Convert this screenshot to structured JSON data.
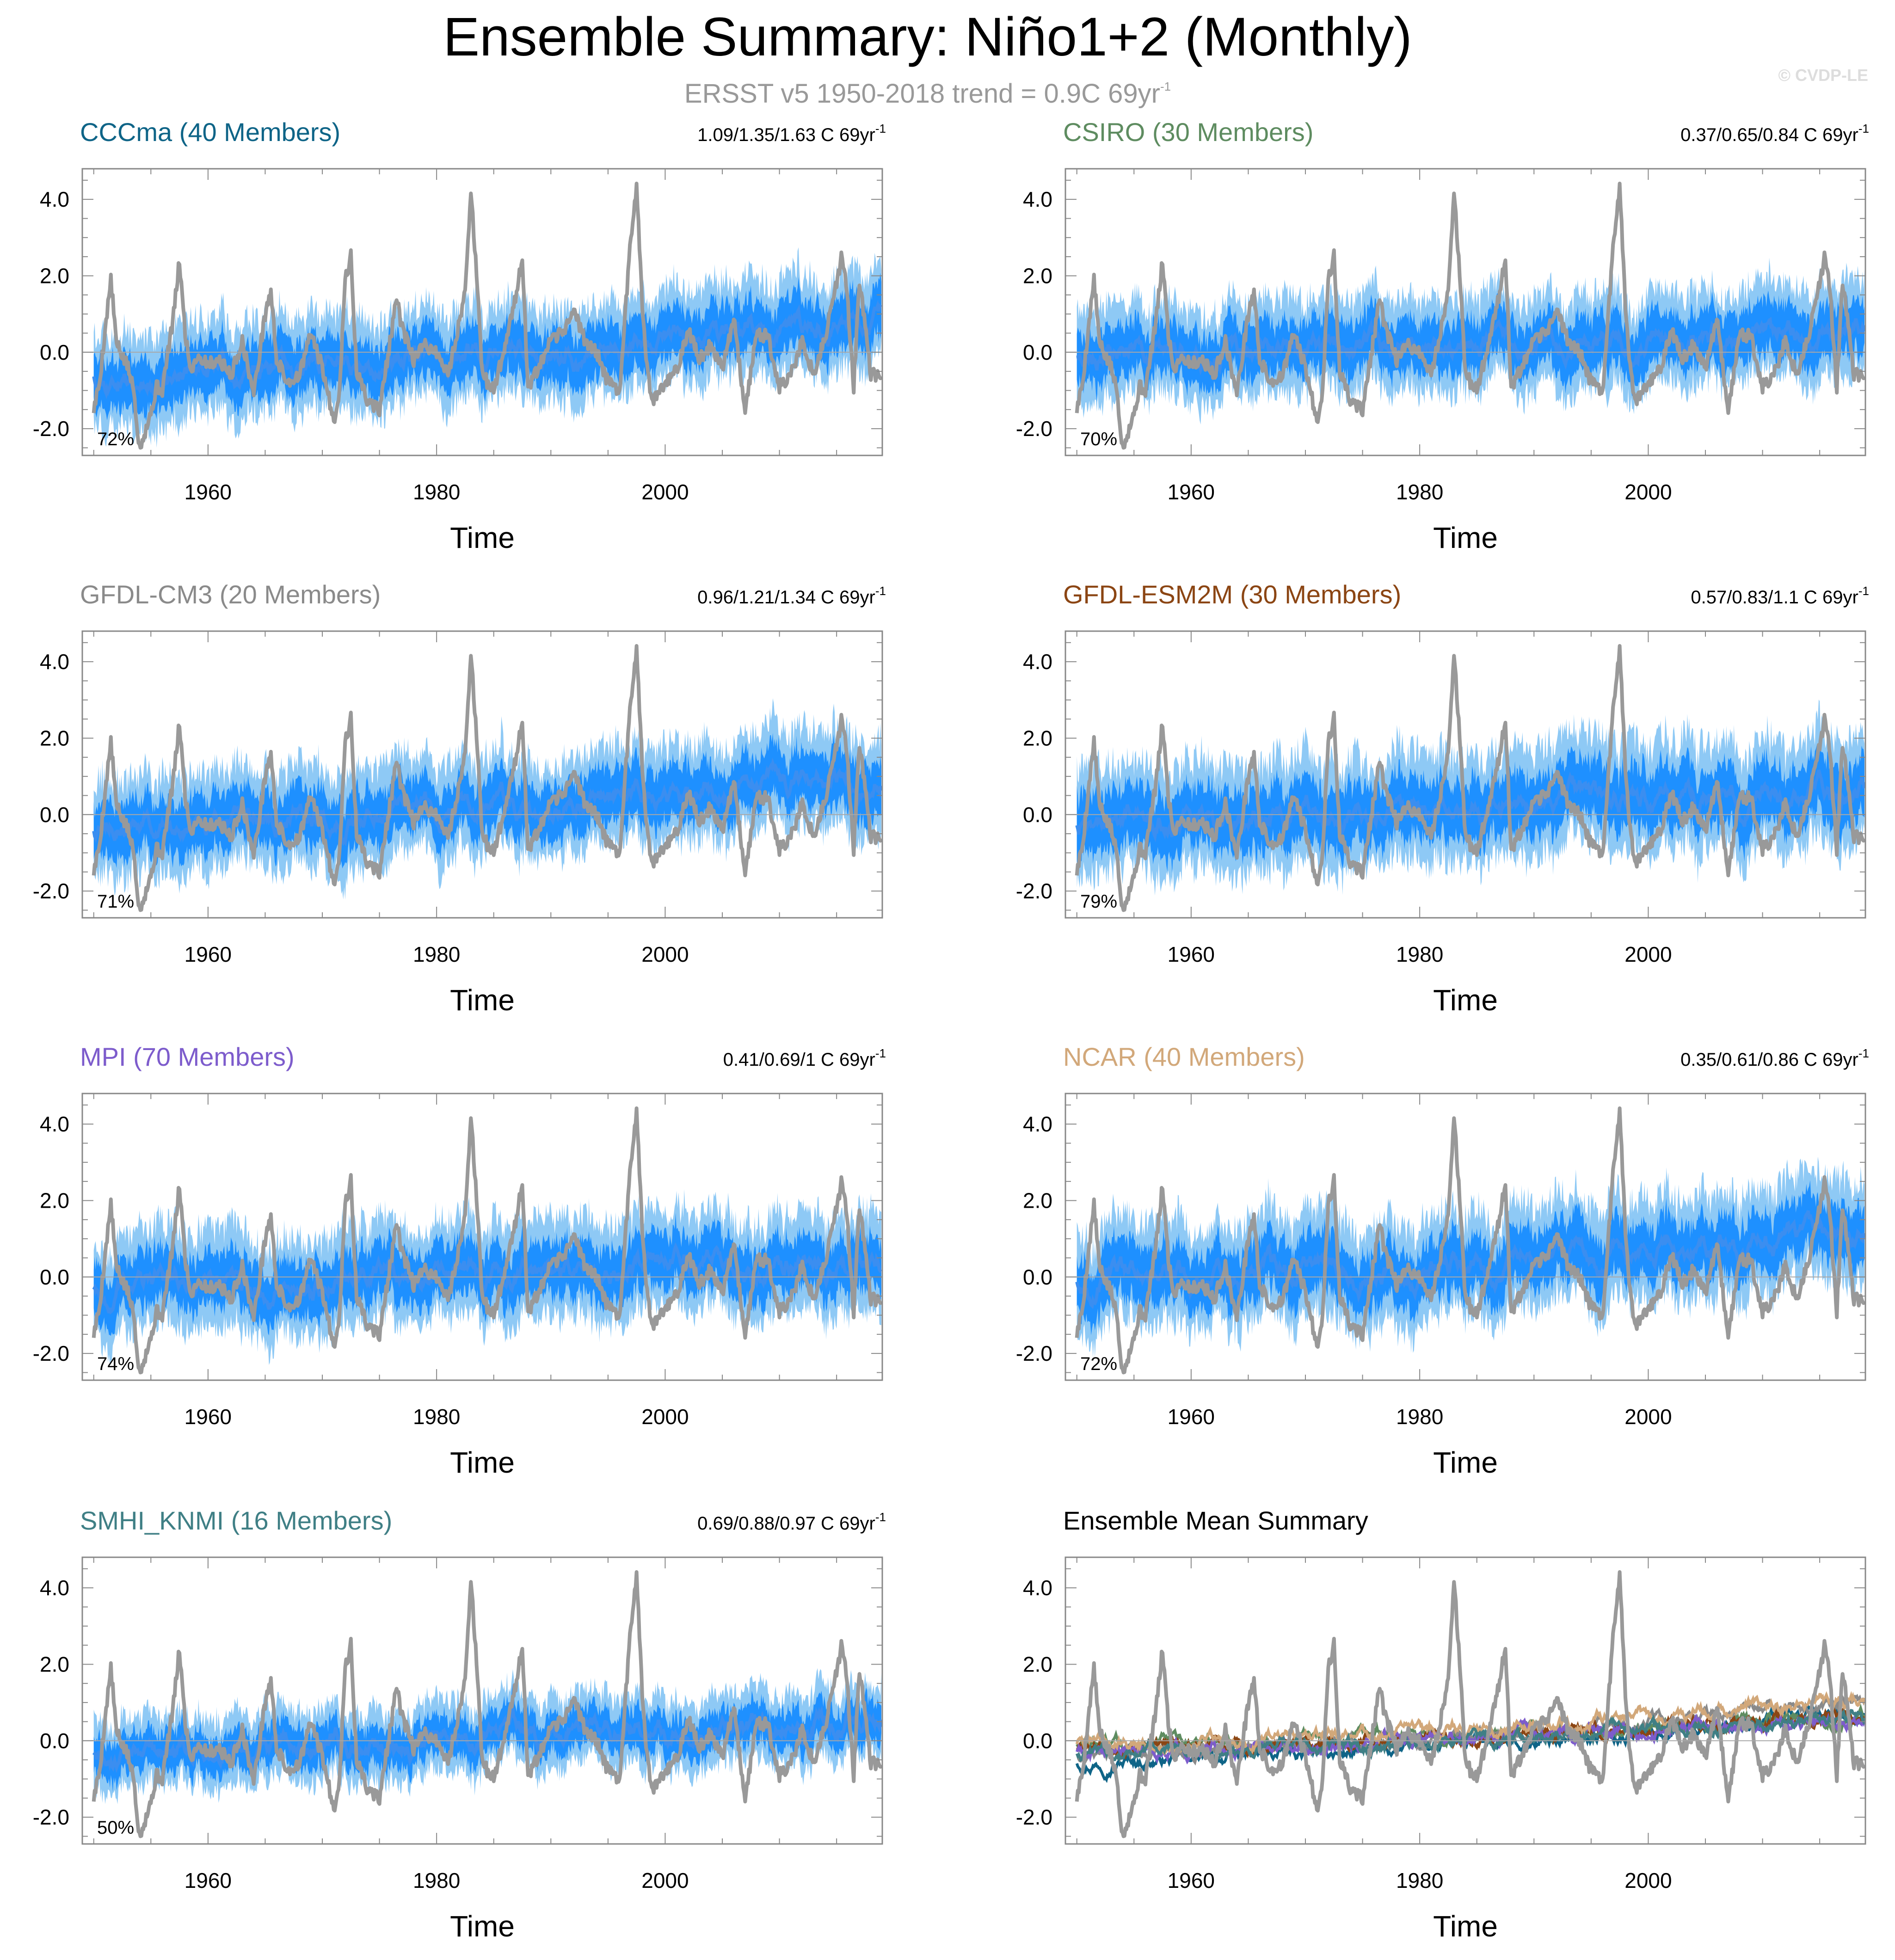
{
  "header": {
    "title": "Ensemble Summary: Niño1+2 (Monthly)",
    "subtitle": "ERSST v5 1950-2018 trend = 0.9C 69yr",
    "subtitle_sup": "-1",
    "copyright": "© CVDP-LE"
  },
  "colors": {
    "observed": "#999999",
    "ensemble_mean": "#3b8ef0",
    "spread_inner": "#1e90ff",
    "spread_outer": "#8ec9f5",
    "axis": "#888888",
    "zero_line": "#a8a8a8"
  },
  "panels": [
    {
      "title": "CCCma (40 Members)",
      "color": "#0e6487",
      "trend": "1.09/1.35/1.63 C 69yr",
      "trend_sup": "-1",
      "pct": "72%",
      "end_mean": 0.75,
      "start_mean": -0.55,
      "wid": 1.0,
      "seed": 11
    },
    {
      "title": "CSIRO (30 Members)",
      "color": "#5e8c60",
      "trend": "0.37/0.65/0.84 C 69yr",
      "trend_sup": "-1",
      "pct": "70%",
      "end_mean": 0.6,
      "start_mean": -0.05,
      "wid": 1.0,
      "seed": 23
    },
    {
      "title": "GFDL-CM3 (20 Members)",
      "color": "#8a8a8a",
      "trend": "0.96/1.21/1.34 C 69yr",
      "trend_sup": "-1",
      "pct": "71%",
      "end_mean": 1.0,
      "start_mean": -0.35,
      "wid": 1.05,
      "seed": 37
    },
    {
      "title": "GFDL-ESM2M (30 Members)",
      "color": "#8b4513",
      "trend": "0.57/0.83/1.1 C 69yr",
      "trend_sup": "-1",
      "pct": "79%",
      "end_mean": 0.65,
      "start_mean": -0.2,
      "wid": 1.15,
      "seed": 41
    },
    {
      "title": "MPI (70 Members)",
      "color": "#7d5ccc",
      "trend": "0.41/0.69/1 C 69yr",
      "trend_sup": "-1",
      "pct": "74%",
      "end_mean": 0.55,
      "start_mean": -0.25,
      "wid": 1.05,
      "seed": 53
    },
    {
      "title": "NCAR (40 Members)",
      "color": "#d2a87a",
      "trend": "0.35/0.61/0.86 C 69yr",
      "trend_sup": "-1",
      "pct": "72%",
      "end_mean": 1.1,
      "start_mean": -0.05,
      "wid": 1.1,
      "seed": 67
    },
    {
      "title": "SMHI_KNMI (16 Members)",
      "color": "#3f7f85",
      "trend": "0.69/0.88/0.97 C 69yr",
      "trend_sup": "-1",
      "pct": "50%",
      "end_mean": 0.6,
      "start_mean": -0.3,
      "wid": 0.75,
      "seed": 79
    },
    {
      "title": "Ensemble Mean Summary",
      "color": "#000000",
      "trend": "",
      "trend_sup": "",
      "pct": "",
      "summary": true,
      "seed": 97
    }
  ],
  "chart_data": {
    "type": "line",
    "title": "Ensemble Summary: Niño1+2 (Monthly)",
    "xlabel": "Time",
    "ylabel": "",
    "xlim": [
      1949,
      2019
    ],
    "ylim": [
      -2.7,
      4.8
    ],
    "x_ticks": [
      1960,
      1980,
      2000
    ],
    "y_ticks": [
      -2.0,
      0.0,
      2.0,
      4.0
    ],
    "y_tick_labels": [
      "-2.0",
      "0.0",
      "2.0",
      "4.0"
    ],
    "observed_series": {
      "name": "ERSST v5",
      "x": [
        1950.0,
        1950.5,
        1951.0,
        1951.5,
        1952.0,
        1953.0,
        1953.5,
        1954.0,
        1955.0,
        1955.5,
        1956.0,
        1957.0,
        1957.5,
        1958.0,
        1958.5,
        1959.0,
        1960.0,
        1961.0,
        1962.0,
        1963.0,
        1964.0,
        1965.0,
        1965.5,
        1966.0,
        1967.0,
        1968.0,
        1969.0,
        1970.0,
        1971.0,
        1971.5,
        1972.0,
        1972.5,
        1973.0,
        1974.0,
        1975.0,
        1976.0,
        1976.5,
        1977.0,
        1978.0,
        1979.0,
        1980.0,
        1981.0,
        1982.0,
        1982.5,
        1983.0,
        1983.5,
        1984.0,
        1985.0,
        1986.0,
        1987.0,
        1987.5,
        1988.0,
        1989.0,
        1990.0,
        1991.0,
        1992.0,
        1993.0,
        1994.0,
        1995.0,
        1996.0,
        1997.0,
        1997.5,
        1998.0,
        1998.5,
        1999.0,
        2000.0,
        2001.0,
        2002.0,
        2003.0,
        2004.0,
        2005.0,
        2006.0,
        2007.0,
        2008.0,
        2009.0,
        2010.0,
        2011.0,
        2012.0,
        2013.0,
        2014.0,
        2015.0,
        2015.5,
        2016.0,
        2016.5,
        2017.0,
        2018.0
      ],
      "y": [
        -1.5,
        -0.8,
        0.6,
        1.9,
        0.2,
        -0.4,
        -1.0,
        -2.5,
        -1.6,
        -0.9,
        -1.0,
        1.0,
        2.4,
        0.5,
        -0.5,
        -0.1,
        -0.3,
        -0.2,
        -0.6,
        0.3,
        -1.1,
        1.0,
        1.6,
        -0.2,
        -0.8,
        -0.6,
        0.5,
        -0.4,
        -1.8,
        -1.0,
        1.9,
        2.5,
        -0.5,
        -1.3,
        -1.5,
        0.4,
        1.4,
        0.6,
        -0.2,
        0.2,
        0.0,
        -0.6,
        0.8,
        1.6,
        4.3,
        2.0,
        -0.6,
        -1.0,
        0.2,
        1.6,
        2.4,
        -0.9,
        -0.4,
        0.3,
        0.5,
        1.1,
        0.3,
        0.0,
        -0.8,
        -1.0,
        3.0,
        4.4,
        1.3,
        -0.7,
        -1.3,
        -0.8,
        -0.5,
        0.6,
        -0.2,
        0.2,
        -0.4,
        0.9,
        -1.5,
        0.5,
        0.4,
        -0.9,
        -0.6,
        0.3,
        -0.6,
        0.4,
        1.8,
        2.6,
        1.2,
        -0.9,
        1.9,
        -0.6
      ]
    },
    "ensemble_mean_endpoints": [
      {
        "name": "CCCma",
        "start": -0.55,
        "end": 0.75
      },
      {
        "name": "CSIRO",
        "start": -0.05,
        "end": 0.6
      },
      {
        "name": "GFDL-CM3",
        "start": -0.35,
        "end": 1.0
      },
      {
        "name": "GFDL-ESM2M",
        "start": -0.2,
        "end": 0.65
      },
      {
        "name": "MPI",
        "start": -0.25,
        "end": 0.55
      },
      {
        "name": "NCAR",
        "start": -0.05,
        "end": 1.1
      },
      {
        "name": "SMHI_KNMI",
        "start": -0.3,
        "end": 0.6
      }
    ]
  }
}
